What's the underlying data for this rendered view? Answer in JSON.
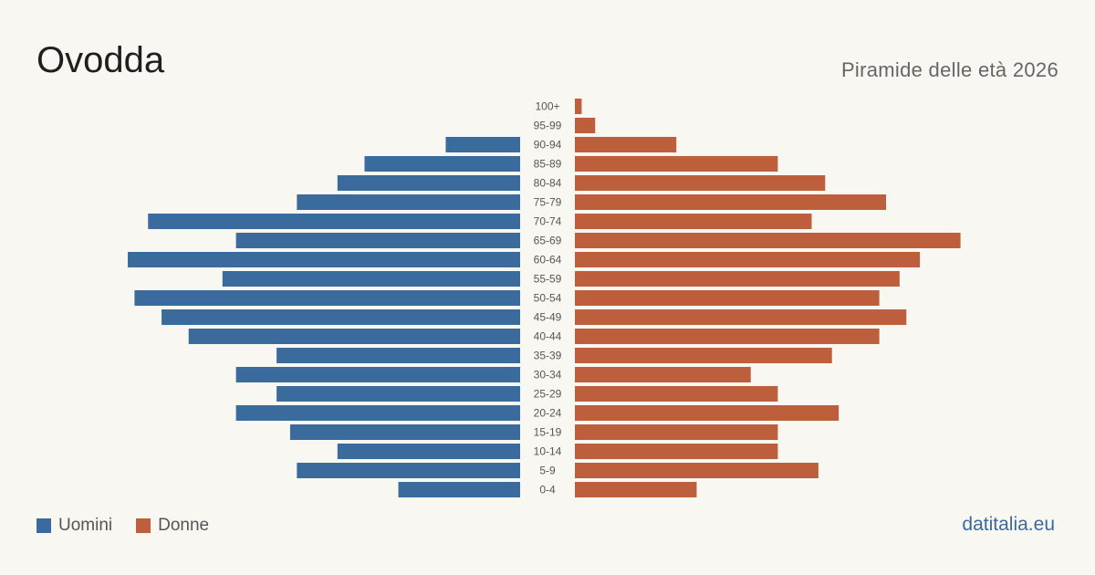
{
  "title": "Ovodda",
  "subtitle": "Piramide delle età 2026",
  "brand": "datitalia.eu",
  "colors": {
    "men": "#3b6a9c",
    "women": "#bd5f3c",
    "tick_text": "#555555",
    "background": "#f9f7f2"
  },
  "chart_data": {
    "type": "bar",
    "orientation": "horizontal-pyramid",
    "categories": [
      "100+",
      "95-99",
      "90-94",
      "85-89",
      "80-84",
      "75-79",
      "70-74",
      "65-69",
      "60-64",
      "55-59",
      "50-54",
      "45-49",
      "40-44",
      "35-39",
      "30-34",
      "25-29",
      "20-24",
      "15-19",
      "10-14",
      "5-9",
      "0-4"
    ],
    "series": [
      {
        "name": "Uomini",
        "color": "#3b6a9c",
        "values": [
          0,
          0,
          11,
          23,
          27,
          33,
          55,
          42,
          58,
          44,
          57,
          53,
          49,
          36,
          42,
          36,
          42,
          34,
          27,
          33,
          18
        ]
      },
      {
        "name": "Donne",
        "color": "#bd5f3c",
        "values": [
          1,
          3,
          15,
          30,
          37,
          46,
          35,
          57,
          51,
          48,
          45,
          49,
          45,
          38,
          26,
          30,
          39,
          30,
          30,
          36,
          18
        ]
      }
    ],
    "xlim": [
      0,
      58
    ],
    "legend_placement": "bottom-left",
    "grid": false
  }
}
